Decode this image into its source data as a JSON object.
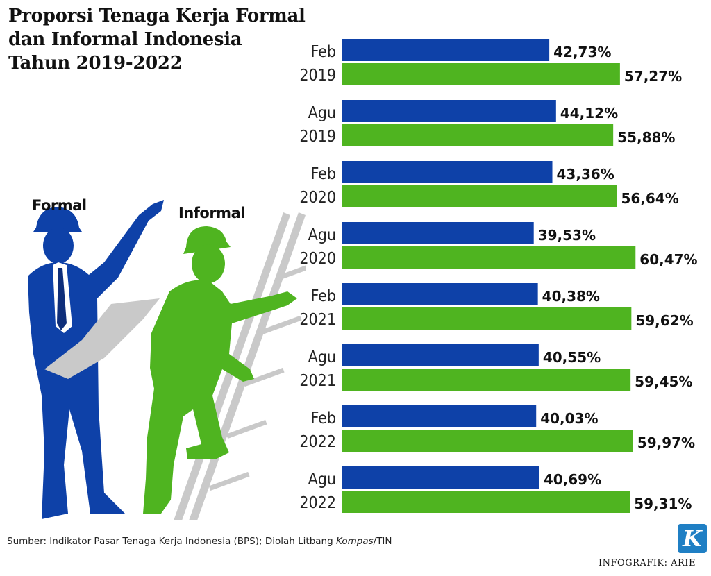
{
  "title": {
    "line1": "Proporsi Tenaga Kerja Formal",
    "line2": "dan Informal Indonesia",
    "line3": "Tahun 2019-2022"
  },
  "legend": {
    "formal": "Formal",
    "informal": "Informal"
  },
  "colors": {
    "formal": "#0e41a8",
    "informal": "#4fb420",
    "paper": "#c9c9c9"
  },
  "chart_data": {
    "type": "bar",
    "orientation": "horizontal",
    "title": "Proporsi Tenaga Kerja Formal dan Informal Indonesia Tahun 2019-2022",
    "categories": [
      [
        "Feb",
        "2019"
      ],
      [
        "Agu",
        "2019"
      ],
      [
        "Feb",
        "2020"
      ],
      [
        "Agu",
        "2020"
      ],
      [
        "Feb",
        "2021"
      ],
      [
        "Agu",
        "2021"
      ],
      [
        "Feb",
        "2022"
      ],
      [
        "Agu",
        "2022"
      ]
    ],
    "series": [
      {
        "name": "Formal",
        "values": [
          42.73,
          44.12,
          43.36,
          39.53,
          40.38,
          40.55,
          40.03,
          40.69
        ],
        "labels": [
          "42,73%",
          "44,12%",
          "43,36%",
          "39,53%",
          "40,38%",
          "40,55%",
          "40,03%",
          "40,69%"
        ]
      },
      {
        "name": "Informal",
        "values": [
          57.27,
          55.88,
          56.64,
          60.47,
          59.62,
          59.45,
          59.97,
          59.31
        ],
        "labels": [
          "57,27%",
          "55,88%",
          "56,64%",
          "60,47%",
          "59,62%",
          "59,45%",
          "59,97%",
          "59,31%"
        ]
      }
    ],
    "unit": "%",
    "grid": false
  },
  "source": {
    "prefix": "Sumber: Indikator Pasar Tenaga Kerja Indonesia (BPS); Diolah Litbang ",
    "italic": "Kompas",
    "suffix": "/TIN"
  },
  "logo": "K",
  "credit": "INFOGRAFIK: ARIE"
}
